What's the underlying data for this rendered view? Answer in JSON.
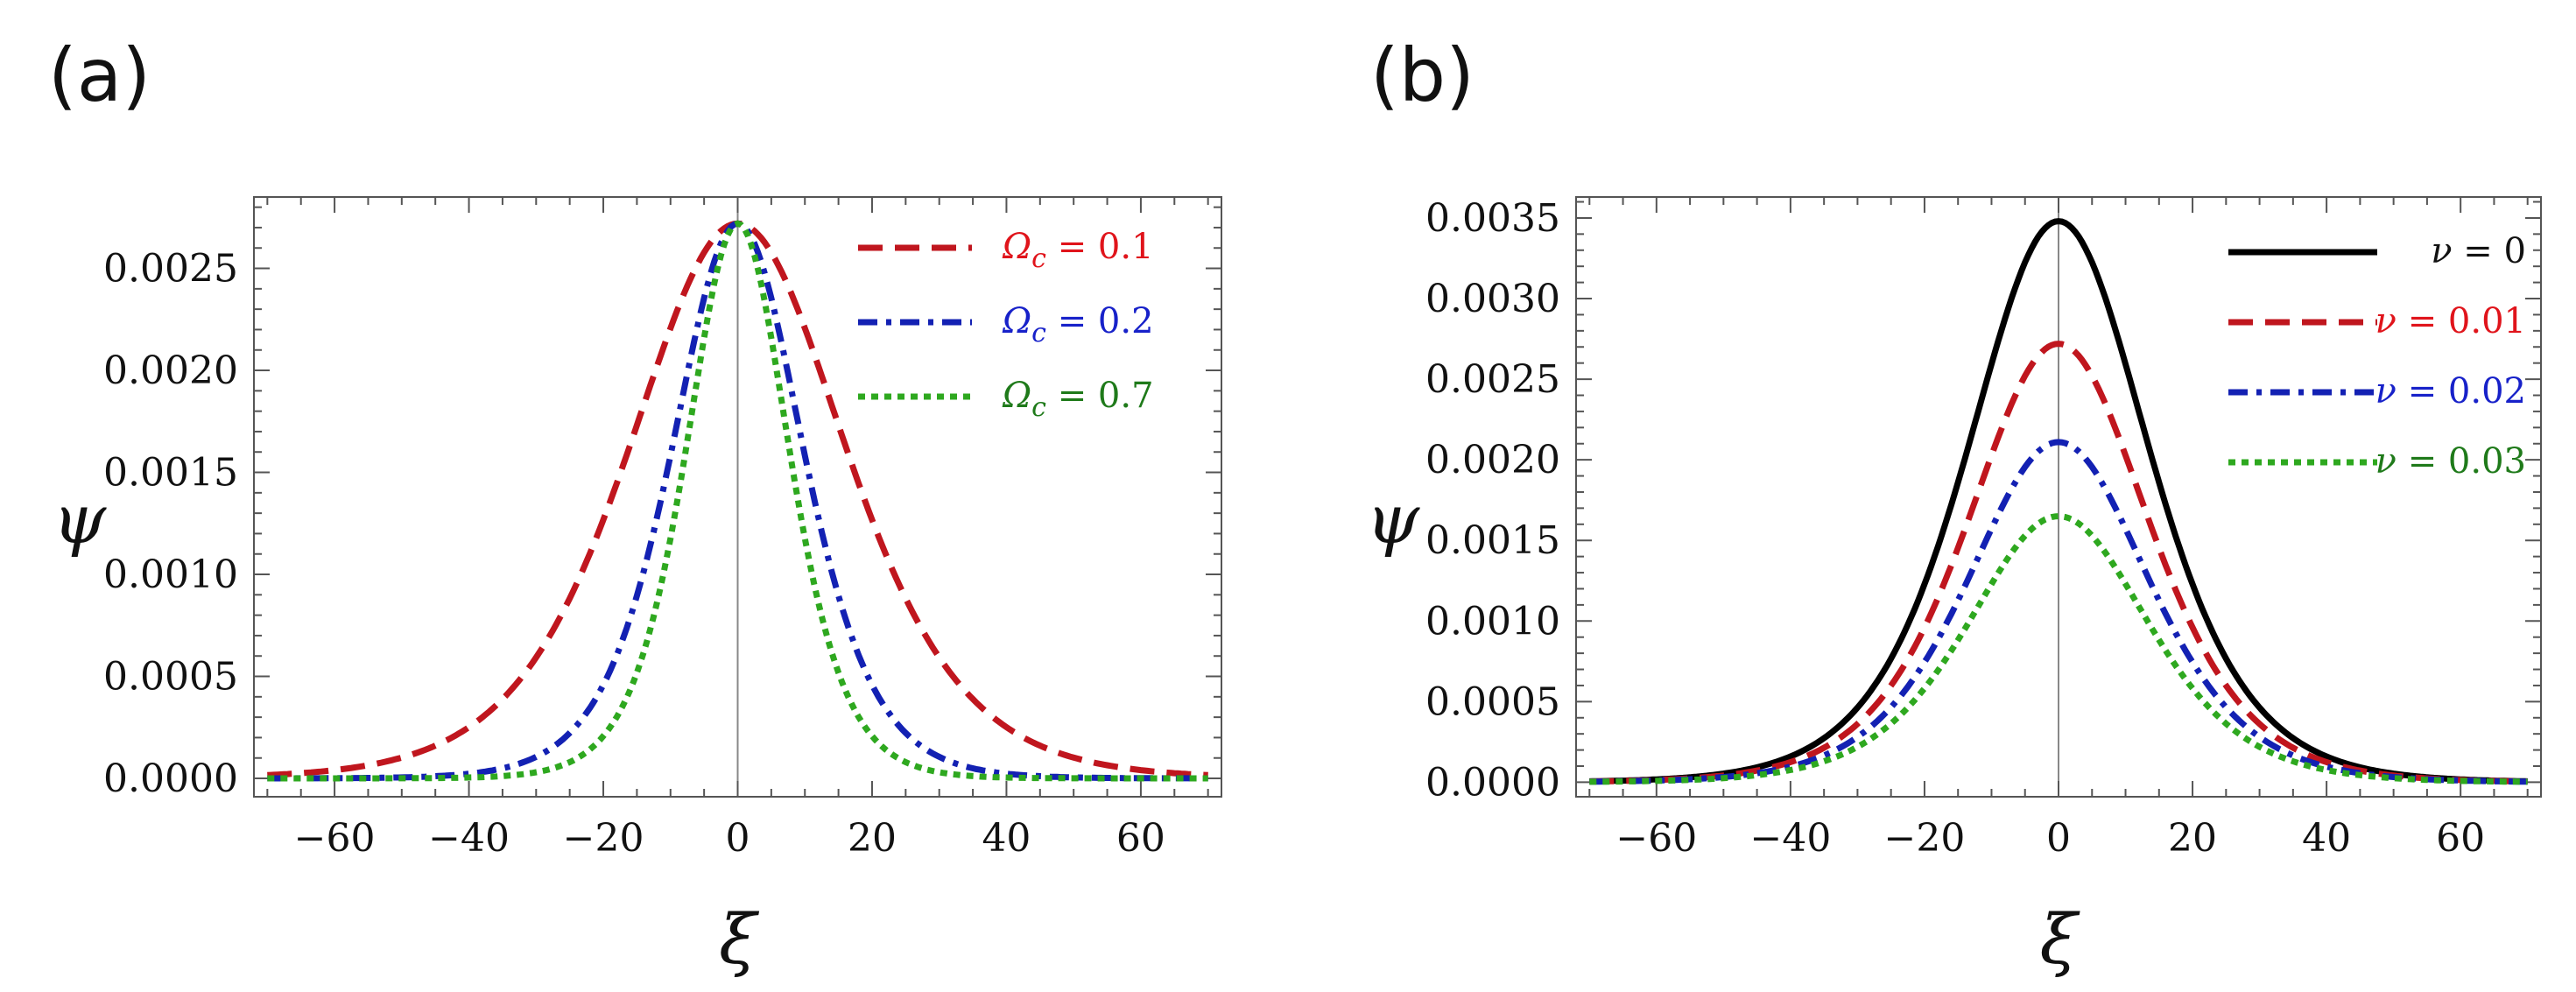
{
  "chart_data": [
    {
      "type": "line",
      "panel_label": "(a)",
      "xlabel": "ξ",
      "ylabel": "ψ",
      "xlim": [
        -72,
        72
      ],
      "ylim": [
        -9e-05,
        0.00285
      ],
      "xticks": [
        -60,
        -40,
        -20,
        0,
        20,
        40,
        60
      ],
      "xtick_labels": [
        "−60",
        "−40",
        "−20",
        "0",
        "20",
        "40",
        "60"
      ],
      "yticks": [
        0,
        0.0005,
        0.001,
        0.0015,
        0.002,
        0.0025
      ],
      "ytick_labels": [
        "0.0000",
        "0.0005",
        "0.0010",
        "0.0015",
        "0.0020",
        "0.0025"
      ],
      "legend_position": "top-right",
      "series": [
        {
          "name": "Ω_c = 0.1",
          "legend_symbol": "Ω",
          "legend_subscript": "c",
          "legend_value": " = 0.1",
          "color": "#c0161e",
          "dash": "dashed",
          "amplitude": 0.00272,
          "width": 21.5
        },
        {
          "name": "Ω_c = 0.2",
          "legend_symbol": "Ω",
          "legend_subscript": "c",
          "legend_value": " = 0.2",
          "color": "#1321b3",
          "dash": "dashdot",
          "amplitude": 0.00272,
          "width": 13.0
        },
        {
          "name": "Ω_c = 0.7",
          "legend_symbol": "Ω",
          "legend_subscript": "c",
          "legend_value": " = 0.7",
          "color": "#2ea81f",
          "dash": "dotted",
          "amplitude": 0.00272,
          "width": 10.2
        }
      ],
      "legend_label_colors": [
        "#e0141b",
        "#1721c9",
        "#1f7a1a"
      ]
    },
    {
      "type": "line",
      "panel_label": "(b)",
      "xlabel": "ξ",
      "ylabel": "ψ",
      "xlim": [
        -72,
        72
      ],
      "ylim": [
        -9e-05,
        0.00363
      ],
      "xticks": [
        -60,
        -40,
        -20,
        0,
        20,
        40,
        60
      ],
      "xtick_labels": [
        "−60",
        "−40",
        "−20",
        "0",
        "20",
        "40",
        "60"
      ],
      "yticks": [
        0,
        0.0005,
        0.001,
        0.0015,
        0.002,
        0.0025,
        0.003,
        0.0035
      ],
      "ytick_labels": [
        "0.0000",
        "0.0005",
        "0.0010",
        "0.0015",
        "0.0020",
        "0.0025",
        "0.0030",
        "0.0035"
      ],
      "legend_position": "top-right",
      "series": [
        {
          "name": "ν = 0",
          "legend_symbol": "ν",
          "legend_subscript": "",
          "legend_value": " = 0",
          "color": "#000000",
          "dash": "solid",
          "amplitude": 0.00348,
          "width": 18.0
        },
        {
          "name": "ν = 0.01",
          "legend_symbol": "ν",
          "legend_subscript": "",
          "legend_value": " = 0.01",
          "color": "#c0161e",
          "dash": "dashed",
          "amplitude": 0.00272,
          "width": 18.0
        },
        {
          "name": "ν = 0.02",
          "legend_symbol": "ν",
          "legend_subscript": "",
          "legend_value": " = 0.02",
          "color": "#1321b3",
          "dash": "dashdot",
          "amplitude": 0.00211,
          "width": 18.0
        },
        {
          "name": "ν = 0.03",
          "legend_symbol": "ν",
          "legend_subscript": "",
          "legend_value": " = 0.03",
          "color": "#2ea81f",
          "dash": "dotted",
          "amplitude": 0.00165,
          "width": 18.0
        }
      ],
      "legend_label_colors": [
        "#111111",
        "#e0141b",
        "#1721c9",
        "#1f7a1a"
      ]
    }
  ]
}
